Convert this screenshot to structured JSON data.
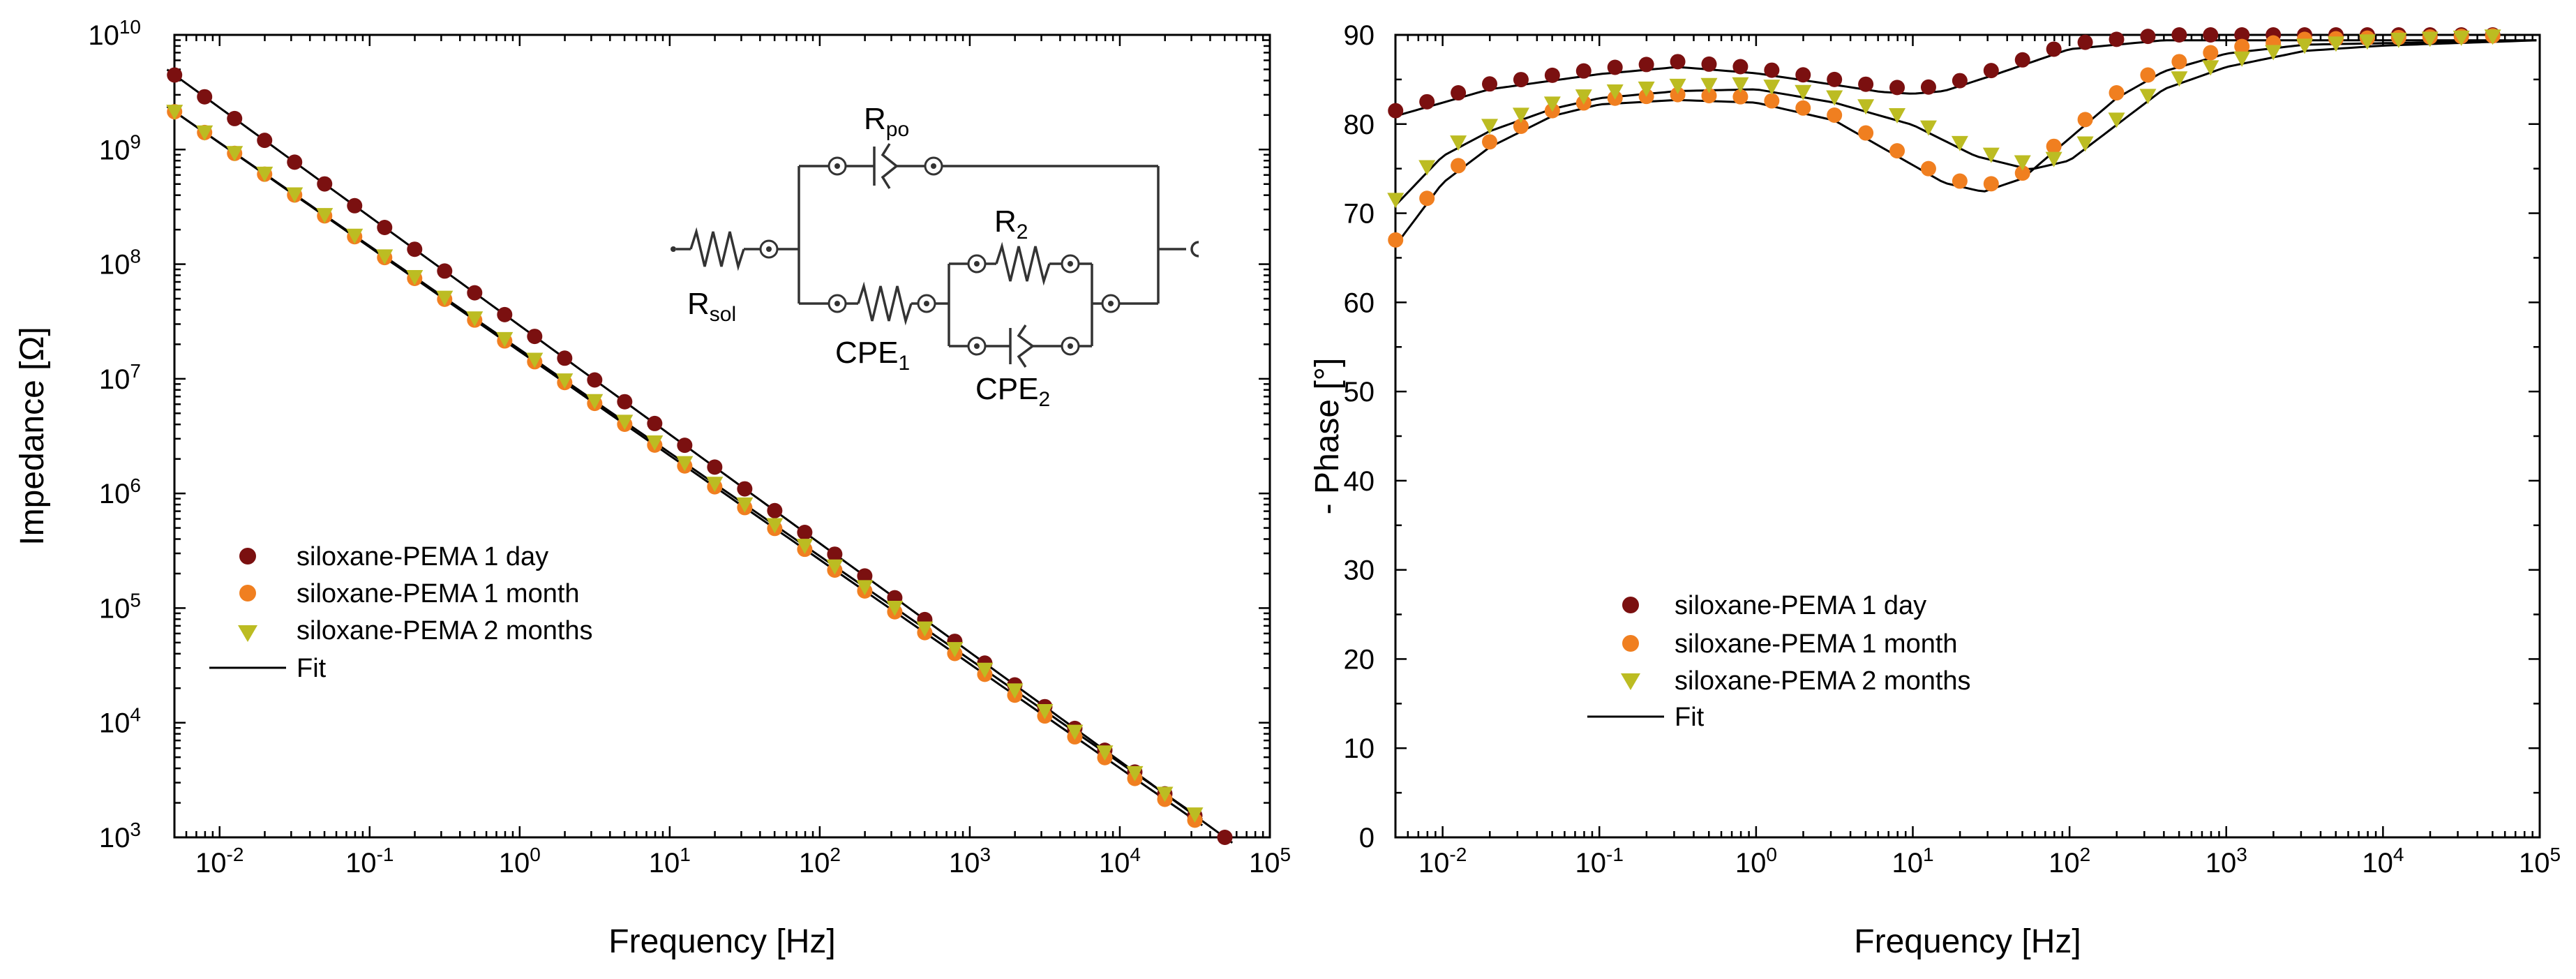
{
  "chart_data": [
    {
      "id": "impedance",
      "type": "scatter",
      "title": "",
      "xlabel": "Frequency [Hz]",
      "ylabel": "Impedance [Ω]",
      "xscale": "log",
      "yscale": "log",
      "xlim": [
        0.005,
        100000
      ],
      "ylim": [
        1000,
        10000000000
      ],
      "x_tick_labels": [
        {
          "base": "10",
          "exp": "-2",
          "value": 0.01
        },
        {
          "base": "10",
          "exp": "-1",
          "value": 0.1
        },
        {
          "base": "10",
          "exp": "0",
          "value": 1
        },
        {
          "base": "10",
          "exp": "1",
          "value": 10
        },
        {
          "base": "10",
          "exp": "2",
          "value": 100
        },
        {
          "base": "10",
          "exp": "3",
          "value": 1000
        },
        {
          "base": "10",
          "exp": "4",
          "value": 10000
        },
        {
          "base": "10",
          "exp": "5",
          "value": 100000
        }
      ],
      "y_tick_labels": [
        {
          "base": "10",
          "exp": "3",
          "value": 1000
        },
        {
          "base": "10",
          "exp": "4",
          "value": 10000
        },
        {
          "base": "10",
          "exp": "5",
          "value": 100000
        },
        {
          "base": "10",
          "exp": "6",
          "value": 1000000
        },
        {
          "base": "10",
          "exp": "7",
          "value": 10000000
        },
        {
          "base": "10",
          "exp": "8",
          "value": 100000000
        },
        {
          "base": "10",
          "exp": "9",
          "value": 1000000000
        },
        {
          "base": "10",
          "exp": "10",
          "value": 10000000000
        }
      ],
      "series": [
        {
          "name": "siloxane-PEMA 1 day",
          "marker": "circle",
          "color": "#7b1010",
          "logf_start": -2.3,
          "logf_end": 4.7,
          "logz_start": 9.65,
          "logz_end": 3.0
        },
        {
          "name": "siloxane-PEMA 1 month",
          "marker": "circle",
          "color": "#f07f20",
          "logf_start": -2.3,
          "logf_end": 4.5,
          "logz_start": 9.33,
          "logz_end": 3.15
        },
        {
          "name": "siloxane-PEMA 2 months",
          "marker": "triangle-down",
          "color": "#bcbc22",
          "logf_start": -2.3,
          "logf_end": 4.5,
          "logz_start": 9.33,
          "logz_end": 3.2
        }
      ],
      "fit": {
        "name": "Fit",
        "color": "#000000"
      },
      "legend": {
        "position": "center-left"
      },
      "inset_circuit": {
        "labels": {
          "r_sol": {
            "main": "R",
            "sub": "sol"
          },
          "r_po": {
            "main": "R",
            "sub": "po"
          },
          "r_2": {
            "main": "R",
            "sub": "2"
          },
          "cpe_1": {
            "main": "CPE",
            "sub": "1"
          },
          "cpe_2": {
            "main": "CPE",
            "sub": "2"
          }
        }
      }
    },
    {
      "id": "phase",
      "type": "scatter",
      "title": "",
      "xlabel": "Frequency [Hz]",
      "ylabel": "- Phase [°]",
      "xscale": "log",
      "yscale": "linear",
      "xlim": [
        0.005,
        100000
      ],
      "ylim": [
        0,
        90
      ],
      "x_tick_labels": [
        {
          "base": "10",
          "exp": "-2",
          "value": 0.01
        },
        {
          "base": "10",
          "exp": "-1",
          "value": 0.1
        },
        {
          "base": "10",
          "exp": "0",
          "value": 1
        },
        {
          "base": "10",
          "exp": "1",
          "value": 10
        },
        {
          "base": "10",
          "exp": "2",
          "value": 100
        },
        {
          "base": "10",
          "exp": "3",
          "value": 1000
        },
        {
          "base": "10",
          "exp": "4",
          "value": 10000
        },
        {
          "base": "10",
          "exp": "5",
          "value": 100000
        }
      ],
      "y_tick_labels": [
        "0",
        "10",
        "20",
        "30",
        "40",
        "50",
        "60",
        "70",
        "80",
        "90"
      ],
      "series": [
        {
          "name": "siloxane-PEMA 1 day",
          "marker": "circle",
          "color": "#7b1010",
          "curve": [
            [
              -2.3,
              81.5
            ],
            [
              -1.7,
              84.5
            ],
            [
              -1.0,
              86.2
            ],
            [
              -0.5,
              87.0
            ],
            [
              0.0,
              86.3
            ],
            [
              0.5,
              85.0
            ],
            [
              0.8,
              84.2
            ],
            [
              1.0,
              84.0
            ],
            [
              1.2,
              84.3
            ],
            [
              1.5,
              86.0
            ],
            [
              2.0,
              89.0
            ],
            [
              2.6,
              90.0
            ],
            [
              5.0,
              90.0
            ]
          ]
        },
        {
          "name": "siloxane-PEMA 1 month",
          "marker": "circle",
          "color": "#f07f20",
          "curve": [
            [
              -2.3,
              67.0
            ],
            [
              -2.0,
              74.0
            ],
            [
              -1.7,
              78.0
            ],
            [
              -1.3,
              81.5
            ],
            [
              -1.0,
              82.8
            ],
            [
              -0.5,
              83.3
            ],
            [
              0.0,
              83.0
            ],
            [
              0.5,
              81.0
            ],
            [
              0.9,
              77.0
            ],
            [
              1.2,
              74.0
            ],
            [
              1.45,
              73.0
            ],
            [
              1.7,
              74.5
            ],
            [
              2.0,
              79.0
            ],
            [
              2.3,
              83.5
            ],
            [
              2.6,
              86.5
            ],
            [
              3.0,
              88.5
            ],
            [
              3.5,
              89.5
            ],
            [
              5.0,
              90.0
            ]
          ]
        },
        {
          "name": "siloxane-PEMA 2 months",
          "marker": "triangle-down",
          "color": "#bcbc22",
          "curve": [
            [
              -2.3,
              71.5
            ],
            [
              -2.0,
              77.0
            ],
            [
              -1.7,
              79.8
            ],
            [
              -1.3,
              82.3
            ],
            [
              -1.0,
              83.5
            ],
            [
              -0.5,
              84.3
            ],
            [
              0.0,
              84.5
            ],
            [
              0.5,
              83.0
            ],
            [
              1.0,
              80.5
            ],
            [
              1.4,
              77.0
            ],
            [
              1.75,
              75.5
            ],
            [
              2.0,
              76.5
            ],
            [
              2.3,
              80.5
            ],
            [
              2.6,
              84.5
            ],
            [
              3.0,
              87.0
            ],
            [
              3.5,
              88.8
            ],
            [
              4.0,
              89.4
            ],
            [
              5.0,
              90.0
            ]
          ]
        }
      ],
      "fit": {
        "name": "Fit",
        "color": "#000000"
      },
      "legend": {
        "position": "lower-left"
      }
    }
  ]
}
